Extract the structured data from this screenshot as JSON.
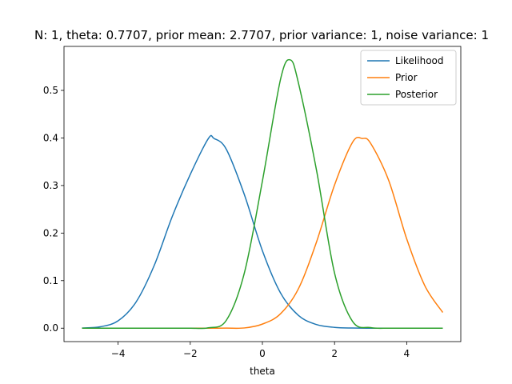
{
  "chart_data": {
    "type": "line",
    "title": "N: 1, theta: 0.7707, prior mean: 2.7707, prior variance: 1, noise variance: 1",
    "xlabel": "theta",
    "ylabel": "",
    "xlim": [
      -5.5,
      5.5
    ],
    "ylim": [
      -0.0282,
      0.5925
    ],
    "xticks": [
      -4,
      -2,
      0,
      2,
      4
    ],
    "xtick_labels": [
      "−4",
      "−2",
      "0",
      "2",
      "4"
    ],
    "yticks": [
      0.0,
      0.1,
      0.2,
      0.3,
      0.4,
      0.5
    ],
    "ytick_labels": [
      "0.0",
      "0.1",
      "0.2",
      "0.3",
      "0.4",
      "0.5"
    ],
    "grid": false,
    "legend_position": "top-right",
    "x": [
      -5.0,
      -4.5,
      -4.0,
      -3.5,
      -3.0,
      -2.5,
      -2.0,
      -1.5,
      -1.0,
      -0.5,
      0.0,
      0.5,
      1.0,
      1.5,
      2.0,
      2.5,
      3.0,
      3.5,
      4.0,
      4.5,
      5.0
    ],
    "series": [
      {
        "name": "Likelihood",
        "color": "#1f77b4",
        "peak": {
          "x": -1.34,
          "y": 0.3989
        },
        "values": [
          0.0004,
          0.0029,
          0.0155,
          0.0553,
          0.1318,
          0.2346,
          0.3232,
          0.3985,
          0.3762,
          0.2809,
          0.163,
          0.0745,
          0.0268,
          0.0076,
          0.0017,
          0.0003,
          0.0,
          0.0,
          0.0,
          0.0,
          0.0
        ]
      },
      {
        "name": "Prior",
        "color": "#ff7f0e",
        "peak": {
          "x": 2.7707,
          "y": 0.3989
        },
        "values": [
          0.0,
          0.0,
          0.0,
          0.0,
          0.0,
          0.0,
          0.0,
          0.0,
          0.0001,
          0.0005,
          0.0086,
          0.0301,
          0.0831,
          0.1813,
          0.301,
          0.391,
          0.3888,
          0.311,
          0.1879,
          0.0897,
          0.0331
        ]
      },
      {
        "name": "Posterior",
        "color": "#2ca02c",
        "peak": {
          "x": 0.7707,
          "y": 0.5642
        },
        "values": [
          0.0,
          0.0,
          0.0,
          0.0,
          0.0,
          0.0,
          0.0,
          0.0008,
          0.0166,
          0.1162,
          0.3093,
          0.5225,
          0.5153,
          0.3321,
          0.1159,
          0.0141,
          0.0012,
          0.0,
          0.0,
          0.0,
          0.0
        ]
      }
    ]
  }
}
